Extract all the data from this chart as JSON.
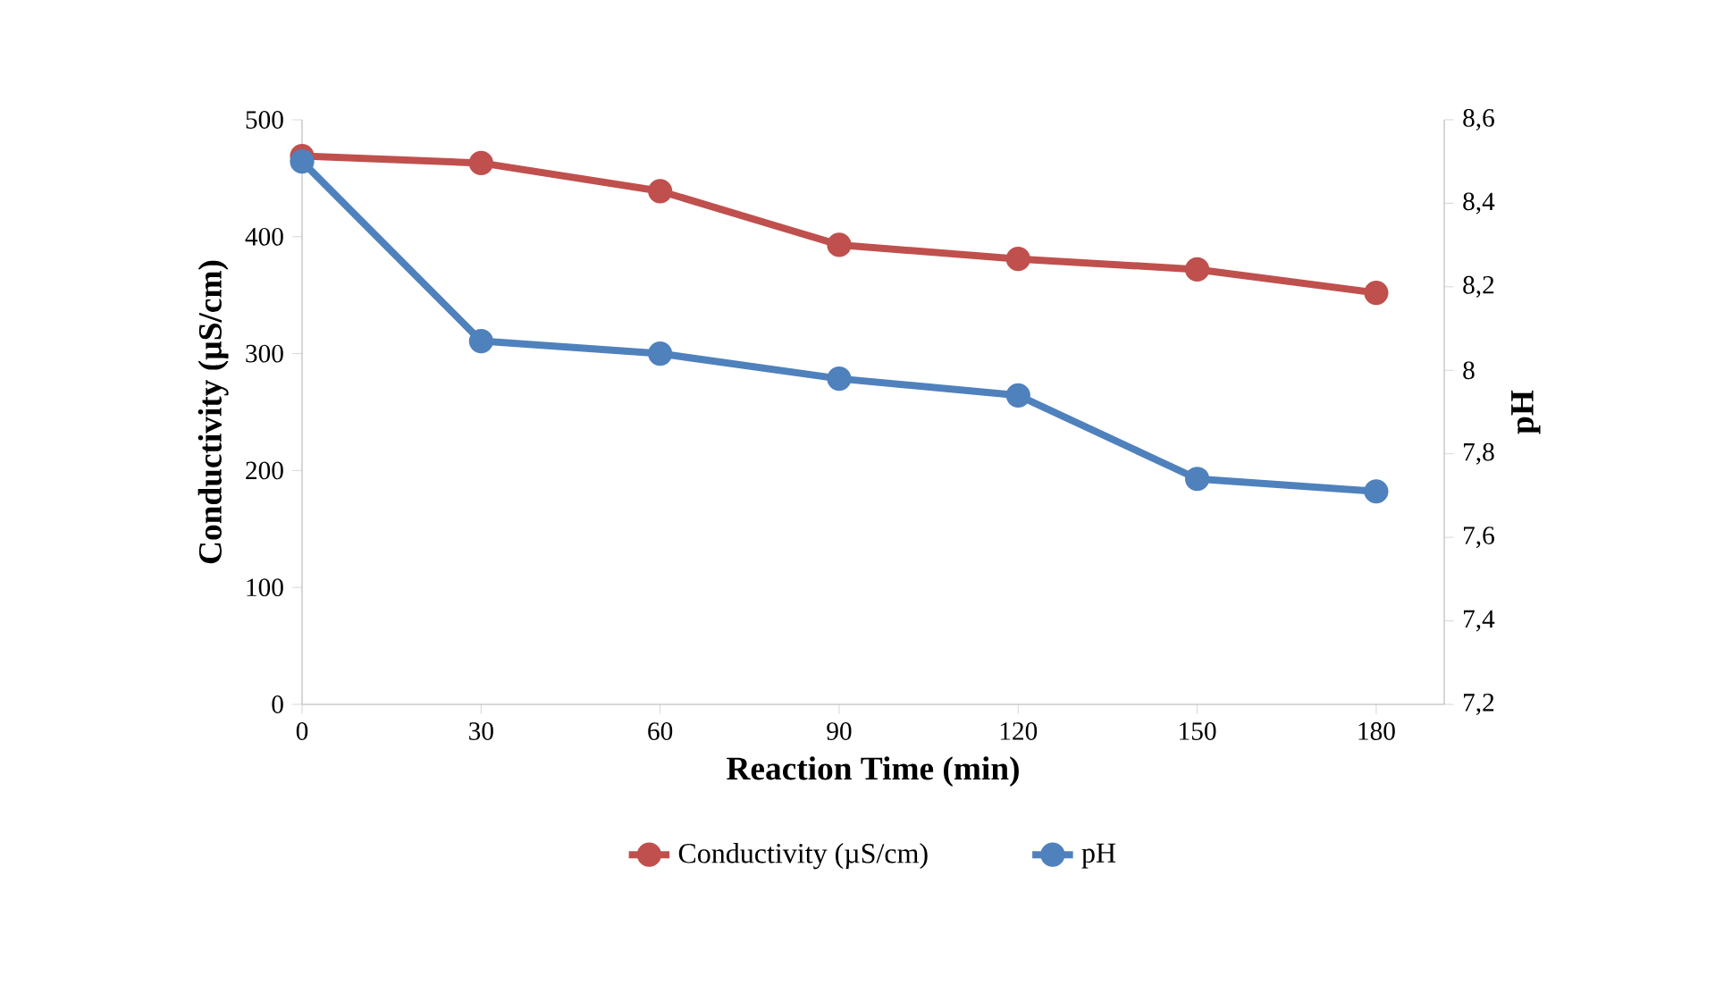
{
  "chart_data": {
    "type": "line",
    "xlabel": "Reaction Time (min)",
    "ylabel": "Conductivity (µS/cm)",
    "y2label": "pH",
    "categories": [
      "0",
      "30",
      "60",
      "90",
      "120",
      "150",
      "180"
    ],
    "series": [
      {
        "name": "Conductivity (µS/cm)",
        "color": "#c0504d",
        "values": [
          469,
          463,
          439,
          393,
          381,
          372,
          352
        ]
      },
      {
        "name": "pH",
        "color": "#4f81bd",
        "axis": "y2",
        "values": [
          8.5,
          8.07,
          8.04,
          7.98,
          7.94,
          7.74,
          7.71
        ]
      }
    ],
    "ylim": [
      0,
      500
    ],
    "yticks": [
      0,
      100,
      200,
      300,
      400,
      500
    ],
    "y2lim": [
      7.2,
      8.6
    ],
    "y2ticks": [
      {
        "value": 7.2,
        "label": "7,2"
      },
      {
        "value": 7.4,
        "label": "7,4"
      },
      {
        "value": 7.6,
        "label": "7,6"
      },
      {
        "value": 7.8,
        "label": "7,8"
      },
      {
        "value": 8,
        "label": "8"
      },
      {
        "value": 8.2,
        "label": "8,2"
      },
      {
        "value": 8.4,
        "label": "8,4"
      },
      {
        "value": 8.6,
        "label": "8,6"
      }
    ],
    "grid": false,
    "legend": "bottom",
    "marker": "circle",
    "line_style": "solid"
  }
}
